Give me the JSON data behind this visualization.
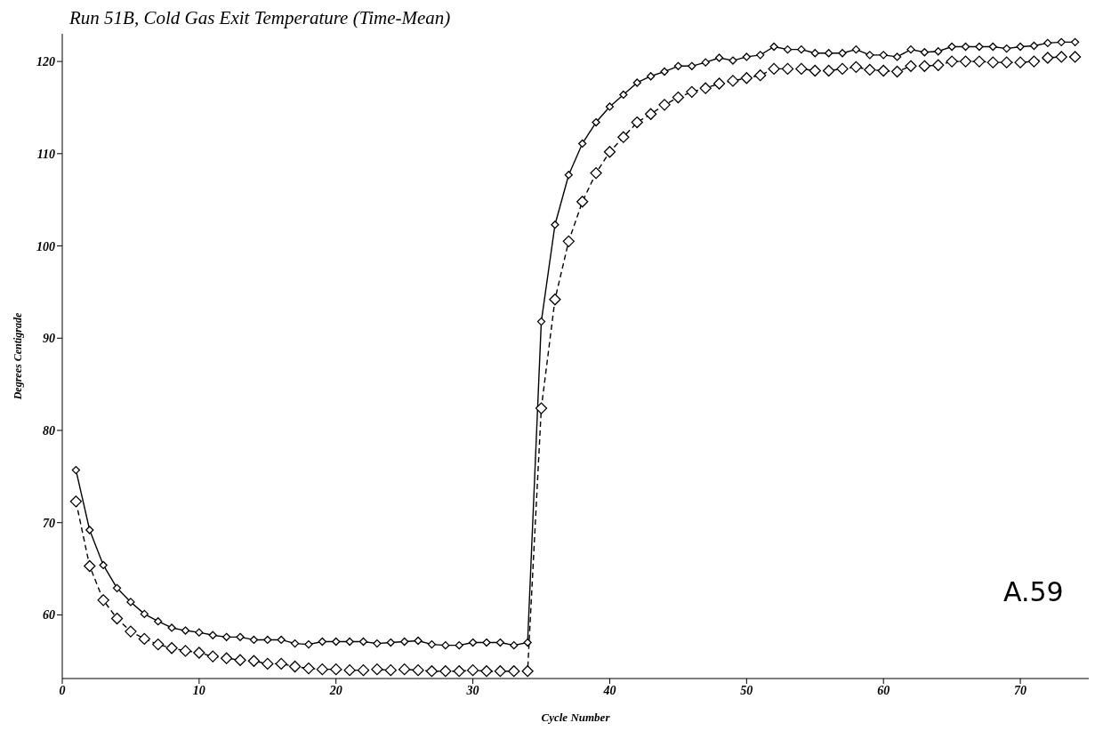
{
  "chart_data": {
    "type": "line",
    "title": "Run 51B, Cold Gas Exit Temperature (Time-Mean)",
    "xlabel": "Cycle Number",
    "ylabel": "Degrees Centigrade",
    "x": [
      1,
      2,
      3,
      4,
      5,
      6,
      7,
      8,
      9,
      10,
      11,
      12,
      13,
      14,
      15,
      16,
      17,
      18,
      19,
      20,
      21,
      22,
      23,
      24,
      25,
      26,
      27,
      28,
      29,
      30,
      31,
      32,
      33,
      34,
      35,
      36,
      37,
      38,
      39,
      40,
      41,
      42,
      43,
      44,
      45,
      46,
      47,
      48,
      49,
      50,
      51,
      52,
      53,
      54,
      55,
      56,
      57,
      58,
      59,
      60,
      61,
      62,
      63,
      64,
      65,
      66,
      67,
      68,
      69,
      70,
      71,
      72,
      73,
      74
    ],
    "series": [
      {
        "color": "#000000",
        "line_style": "solid",
        "values": [
          75.7,
          69.2,
          65.4,
          62.9,
          61.4,
          60.1,
          59.3,
          58.6,
          58.3,
          58.1,
          57.8,
          57.6,
          57.6,
          57.3,
          57.3,
          57.3,
          56.9,
          56.8,
          57.1,
          57.1,
          57.1,
          57.1,
          56.9,
          57.0,
          57.1,
          57.2,
          56.8,
          56.7,
          56.7,
          57.0,
          57.0,
          57.0,
          56.7,
          57.0,
          91.8,
          102.3,
          107.7,
          111.1,
          113.4,
          115.1,
          116.4,
          117.7,
          118.4,
          118.9,
          119.5,
          119.5,
          119.9,
          120.4,
          120.1,
          120.5,
          120.7,
          121.6,
          121.3,
          121.3,
          120.9,
          120.9,
          120.9,
          121.3,
          120.7,
          120.7,
          120.5,
          121.3,
          121.0,
          121.1,
          121.6,
          121.6,
          121.6,
          121.6,
          121.4,
          121.6,
          121.7,
          122.0,
          122.1,
          122.1
        ]
      },
      {
        "color": "#000000",
        "line_style": "dashed",
        "values": [
          72.3,
          65.3,
          61.6,
          59.6,
          58.2,
          57.4,
          56.8,
          56.4,
          56.1,
          55.9,
          55.5,
          55.3,
          55.1,
          55.0,
          54.7,
          54.7,
          54.4,
          54.2,
          54.1,
          54.1,
          54.0,
          54.0,
          54.1,
          54.0,
          54.1,
          54.0,
          53.9,
          53.9,
          53.9,
          54.0,
          53.9,
          53.9,
          53.9,
          53.9,
          82.4,
          94.2,
          100.5,
          104.8,
          107.9,
          110.2,
          111.8,
          113.4,
          114.3,
          115.3,
          116.1,
          116.7,
          117.1,
          117.6,
          117.9,
          118.2,
          118.5,
          119.2,
          119.2,
          119.2,
          119.0,
          119.0,
          119.2,
          119.4,
          119.1,
          119.0,
          118.9,
          119.5,
          119.5,
          119.6,
          120.0,
          120.0,
          120.0,
          119.9,
          119.9,
          119.9,
          120.0,
          120.4,
          120.5,
          120.5
        ]
      }
    ],
    "xlim": [
      0,
      75
    ],
    "xticks": [
      0,
      10,
      20,
      30,
      40,
      50,
      60,
      70
    ],
    "ylim": [
      53.1,
      123
    ],
    "yticks": [
      60,
      70,
      80,
      90,
      100,
      110,
      120
    ],
    "marker": "diamond",
    "grid": false,
    "legend": false,
    "annotations": [
      "A.59"
    ]
  }
}
